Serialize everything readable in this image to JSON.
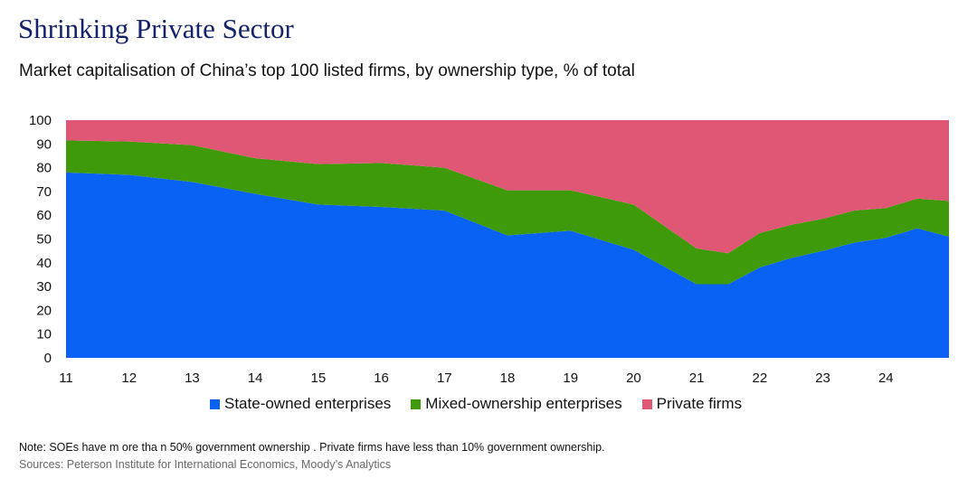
{
  "header": {
    "title": "Shrinking Private Sector",
    "subtitle": "Market capitalisation of China’s top 100 listed firms, by ownership type, % of total"
  },
  "colors": {
    "soe": "#0a62f4",
    "mixed": "#3f9a09",
    "private": "#e05775",
    "title": "#15226b"
  },
  "chart_data": {
    "type": "area",
    "stacked": true,
    "title": "Shrinking Private Sector",
    "subtitle": "Market capitalisation of China’s top 100 listed firms, by ownership type, % of total",
    "xlabel": "",
    "ylabel": "",
    "ylim": [
      0,
      100
    ],
    "yticks": [
      "0",
      "10",
      "20",
      "30",
      "40",
      "50",
      "60",
      "70",
      "80",
      "90",
      "100"
    ],
    "xticks": [
      "11",
      "12",
      "13",
      "14",
      "15",
      "16",
      "17",
      "18",
      "19",
      "20",
      "21",
      "22",
      "23",
      "24"
    ],
    "x": [
      11,
      12,
      13,
      14,
      15,
      16,
      17,
      18,
      19,
      20,
      21,
      21.5,
      22,
      22.5,
      23,
      23.5,
      24,
      24.5,
      25
    ],
    "series": [
      {
        "name": "State-owned enterprises",
        "values": [
          78,
          77,
          74,
          69,
          64.5,
          63.5,
          62,
          51.5,
          53.5,
          45.5,
          31,
          31,
          38,
          42,
          45,
          48.5,
          50.5,
          54.5,
          51
        ]
      },
      {
        "name": "Mixed-ownership enterprises",
        "values": [
          13.5,
          14,
          15.5,
          15,
          17,
          18.5,
          18,
          19,
          17,
          19,
          15,
          13,
          14.5,
          14,
          13.5,
          13.5,
          12.5,
          12.5,
          15
        ]
      },
      {
        "name": "Private firms",
        "values": [
          8.5,
          9,
          10.5,
          16,
          18.5,
          18,
          20,
          29.5,
          29.5,
          35.5,
          54,
          56,
          47.5,
          44,
          41.5,
          38,
          37,
          33,
          34
        ]
      }
    ],
    "legend_position": "bottom",
    "grid": false
  },
  "legend": {
    "items": [
      {
        "label": "State-owned enterprises"
      },
      {
        "label": "Mixed-ownership enterprises"
      },
      {
        "label": "Private firms"
      }
    ]
  },
  "footer": {
    "note": "Note:  SOEs  have m ore tha n  50% government   ownership . Private firms have less than 10% government ownership.",
    "source": "Sources: Peterson Institute for International Economics, Moody’s Analytics"
  }
}
